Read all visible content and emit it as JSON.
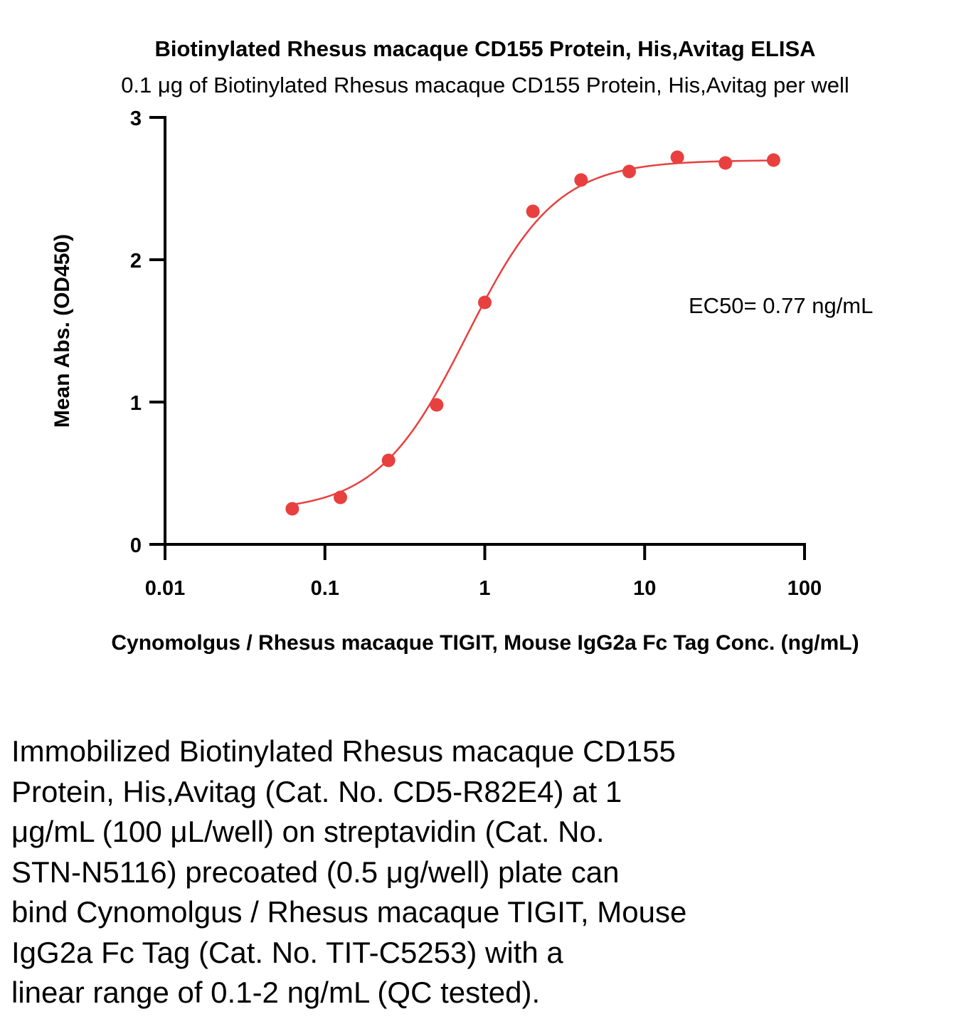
{
  "chart_data": {
    "type": "scatter",
    "title": "Biotinylated Rhesus macaque CD155 Protein, His,Avitag ELISA",
    "subtitle": "0.1 μg of Biotinylated Rhesus macaque CD155 Protein, His,Avitag per well",
    "xlabel": "Cynomolgus / Rhesus macaque TIGIT, Mouse IgG2a Fc Tag Conc. (ng/mL)",
    "ylabel": "Mean Abs. (OD450)",
    "xscale": "log",
    "xlim": [
      0.01,
      100
    ],
    "ylim": [
      0,
      3
    ],
    "x_ticks": [
      "0.01",
      "0.1",
      "1",
      "10",
      "100"
    ],
    "x_tick_values": [
      0.01,
      0.1,
      1,
      10,
      100
    ],
    "y_ticks": [
      "0",
      "1",
      "2",
      "3"
    ],
    "y_tick_values": [
      0,
      1,
      2,
      3
    ],
    "grid": false,
    "color": "#e8403f",
    "series": [
      {
        "x": [
          0.0625,
          0.125,
          0.25,
          0.5,
          1,
          2,
          4,
          8,
          16,
          32,
          64
        ],
        "y": [
          0.25,
          0.33,
          0.59,
          0.98,
          1.7,
          2.34,
          2.56,
          2.62,
          2.72,
          2.68,
          2.7
        ]
      }
    ],
    "annotations": [
      {
        "text": "EC50= 0.77 ng/mL"
      }
    ]
  },
  "caption": "Immobilized Biotinylated Rhesus macaque CD155\nProtein, His,Avitag (Cat. No. CD5-R82E4) at 1\nμg/mL (100 μL/well) on streptavidin (Cat. No.\nSTN-N5116) precoated (0.5 μg/well) plate can\nbind Cynomolgus / Rhesus macaque TIGIT, Mouse\nIgG2a Fc Tag (Cat. No. TIT-C5253) with a\nlinear range of 0.1-2 ng/mL (QC tested)."
}
